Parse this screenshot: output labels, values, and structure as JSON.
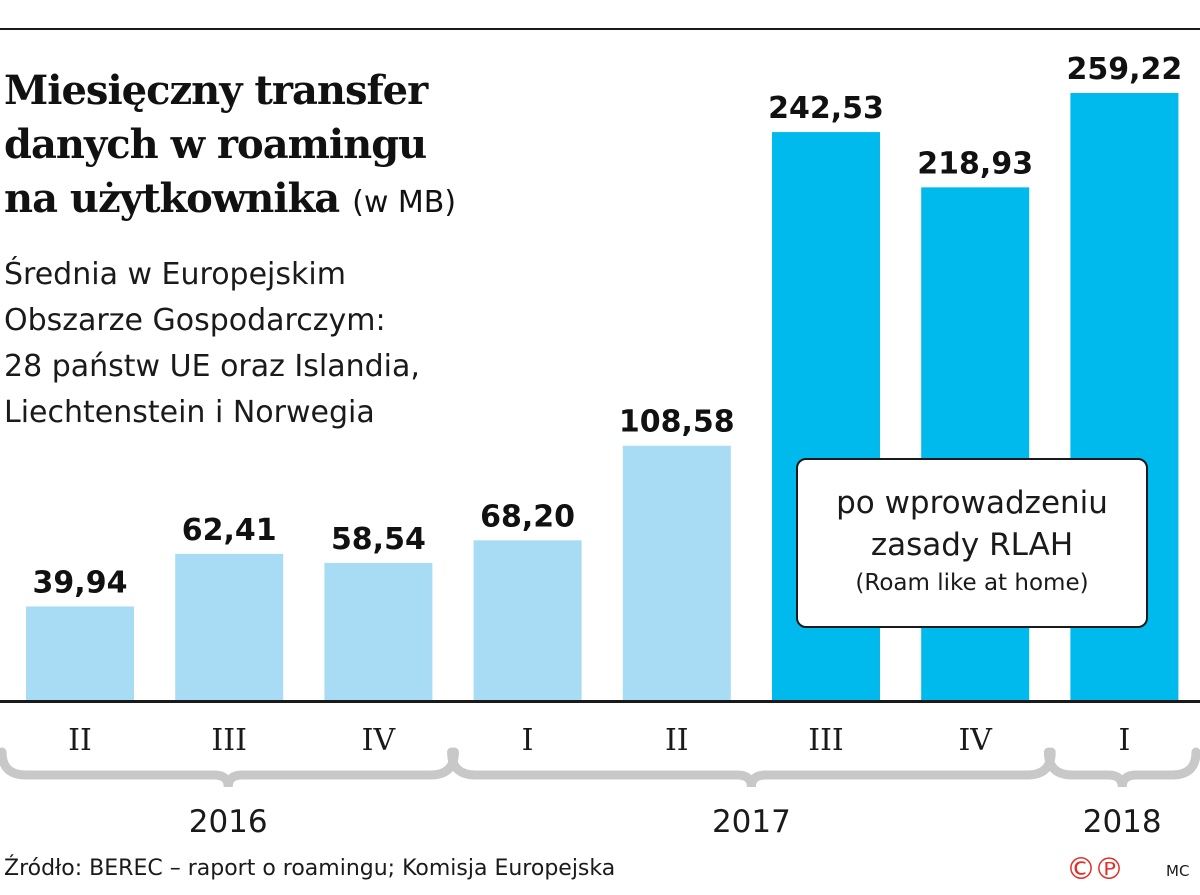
{
  "chart_data": {
    "type": "bar",
    "title_lines": [
      "Miesięczny transfer",
      "danych w roamingu",
      "na użytkownika"
    ],
    "unit": "(w MB)",
    "subtitle_lines": [
      "Średnia w Europejskim",
      "Obszarze Gospodarczym:",
      "28 państw UE oraz Islandia,",
      "Liechtenstein i Norwegia"
    ],
    "categories": [
      "II",
      "III",
      "IV",
      "I",
      "II",
      "III",
      "IV",
      "I"
    ],
    "values": [
      39.94,
      62.41,
      58.54,
      68.2,
      108.58,
      242.53,
      218.93,
      259.22
    ],
    "value_labels": [
      "39,94",
      "62,41",
      "58,54",
      "68,20",
      "108,58",
      "242,53",
      "218,93",
      "259,22"
    ],
    "year_groups": [
      {
        "label": "2016",
        "start": 0,
        "end": 2
      },
      {
        "label": "2017",
        "start": 3,
        "end": 6
      },
      {
        "label": "2018",
        "start": 7,
        "end": 7
      }
    ],
    "ylim": [
      0,
      280
    ],
    "colors": {
      "before_rlah": "#a8dcf5",
      "after_rlah": "#00b9ed",
      "axis": "#1a1a1a",
      "brace": "#c8c8c8"
    },
    "series": [
      {
        "values": [
          39.94,
          62.41,
          58.54,
          68.2,
          108.58,
          null,
          null,
          null
        ],
        "color": "#a8dcf5"
      },
      {
        "values": [
          null,
          null,
          null,
          null,
          null,
          242.53,
          218.93,
          259.22
        ],
        "color": "#00b9ed"
      }
    ],
    "annotation": {
      "line1": "po wprowadzeniu",
      "line2": "zasady RLAH",
      "line3": "(Roam like at home)"
    }
  },
  "footer": {
    "source": "Źródło: BEREC – raport o roamingu; Komisja Europejska",
    "author": "MC",
    "logo_text": "©℗"
  }
}
